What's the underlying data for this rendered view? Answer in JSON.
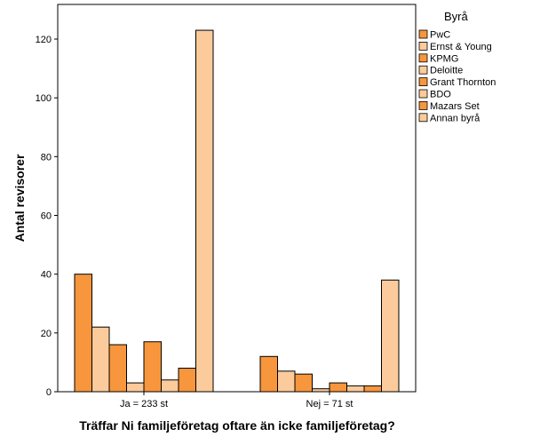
{
  "chart_data": {
    "type": "bar",
    "title": "",
    "xlabel": "Träffar Ni familjeföretag oftare än icke familjeföretag?",
    "ylabel": "Antal revisorer",
    "categories": [
      "Ja = 233 st",
      "Nej = 71 st"
    ],
    "ylim": [
      0,
      130
    ],
    "yticks": [
      0,
      20,
      40,
      60,
      80,
      100,
      120
    ],
    "grid": false,
    "legend_position": "right",
    "legend_title": "Byrå",
    "series": [
      {
        "name": "PwC",
        "color": "#F7963C",
        "values": [
          40,
          12
        ]
      },
      {
        "name": "Ernst & Young",
        "color": "#FBCB9B",
        "values": [
          22,
          7
        ]
      },
      {
        "name": "KPMG",
        "color": "#F7963C",
        "values": [
          16,
          6
        ]
      },
      {
        "name": "Deloitte",
        "color": "#FBCB9B",
        "values": [
          3,
          1
        ]
      },
      {
        "name": "Grant Thornton",
        "color": "#F7963C",
        "values": [
          17,
          3
        ]
      },
      {
        "name": "BDO",
        "color": "#FBCB9B",
        "values": [
          4,
          2
        ]
      },
      {
        "name": "Mazars Set",
        "color": "#F7963C",
        "values": [
          8,
          2
        ]
      },
      {
        "name": "Annan byrå",
        "color": "#FBCB9B",
        "values": [
          123,
          38
        ]
      }
    ]
  }
}
